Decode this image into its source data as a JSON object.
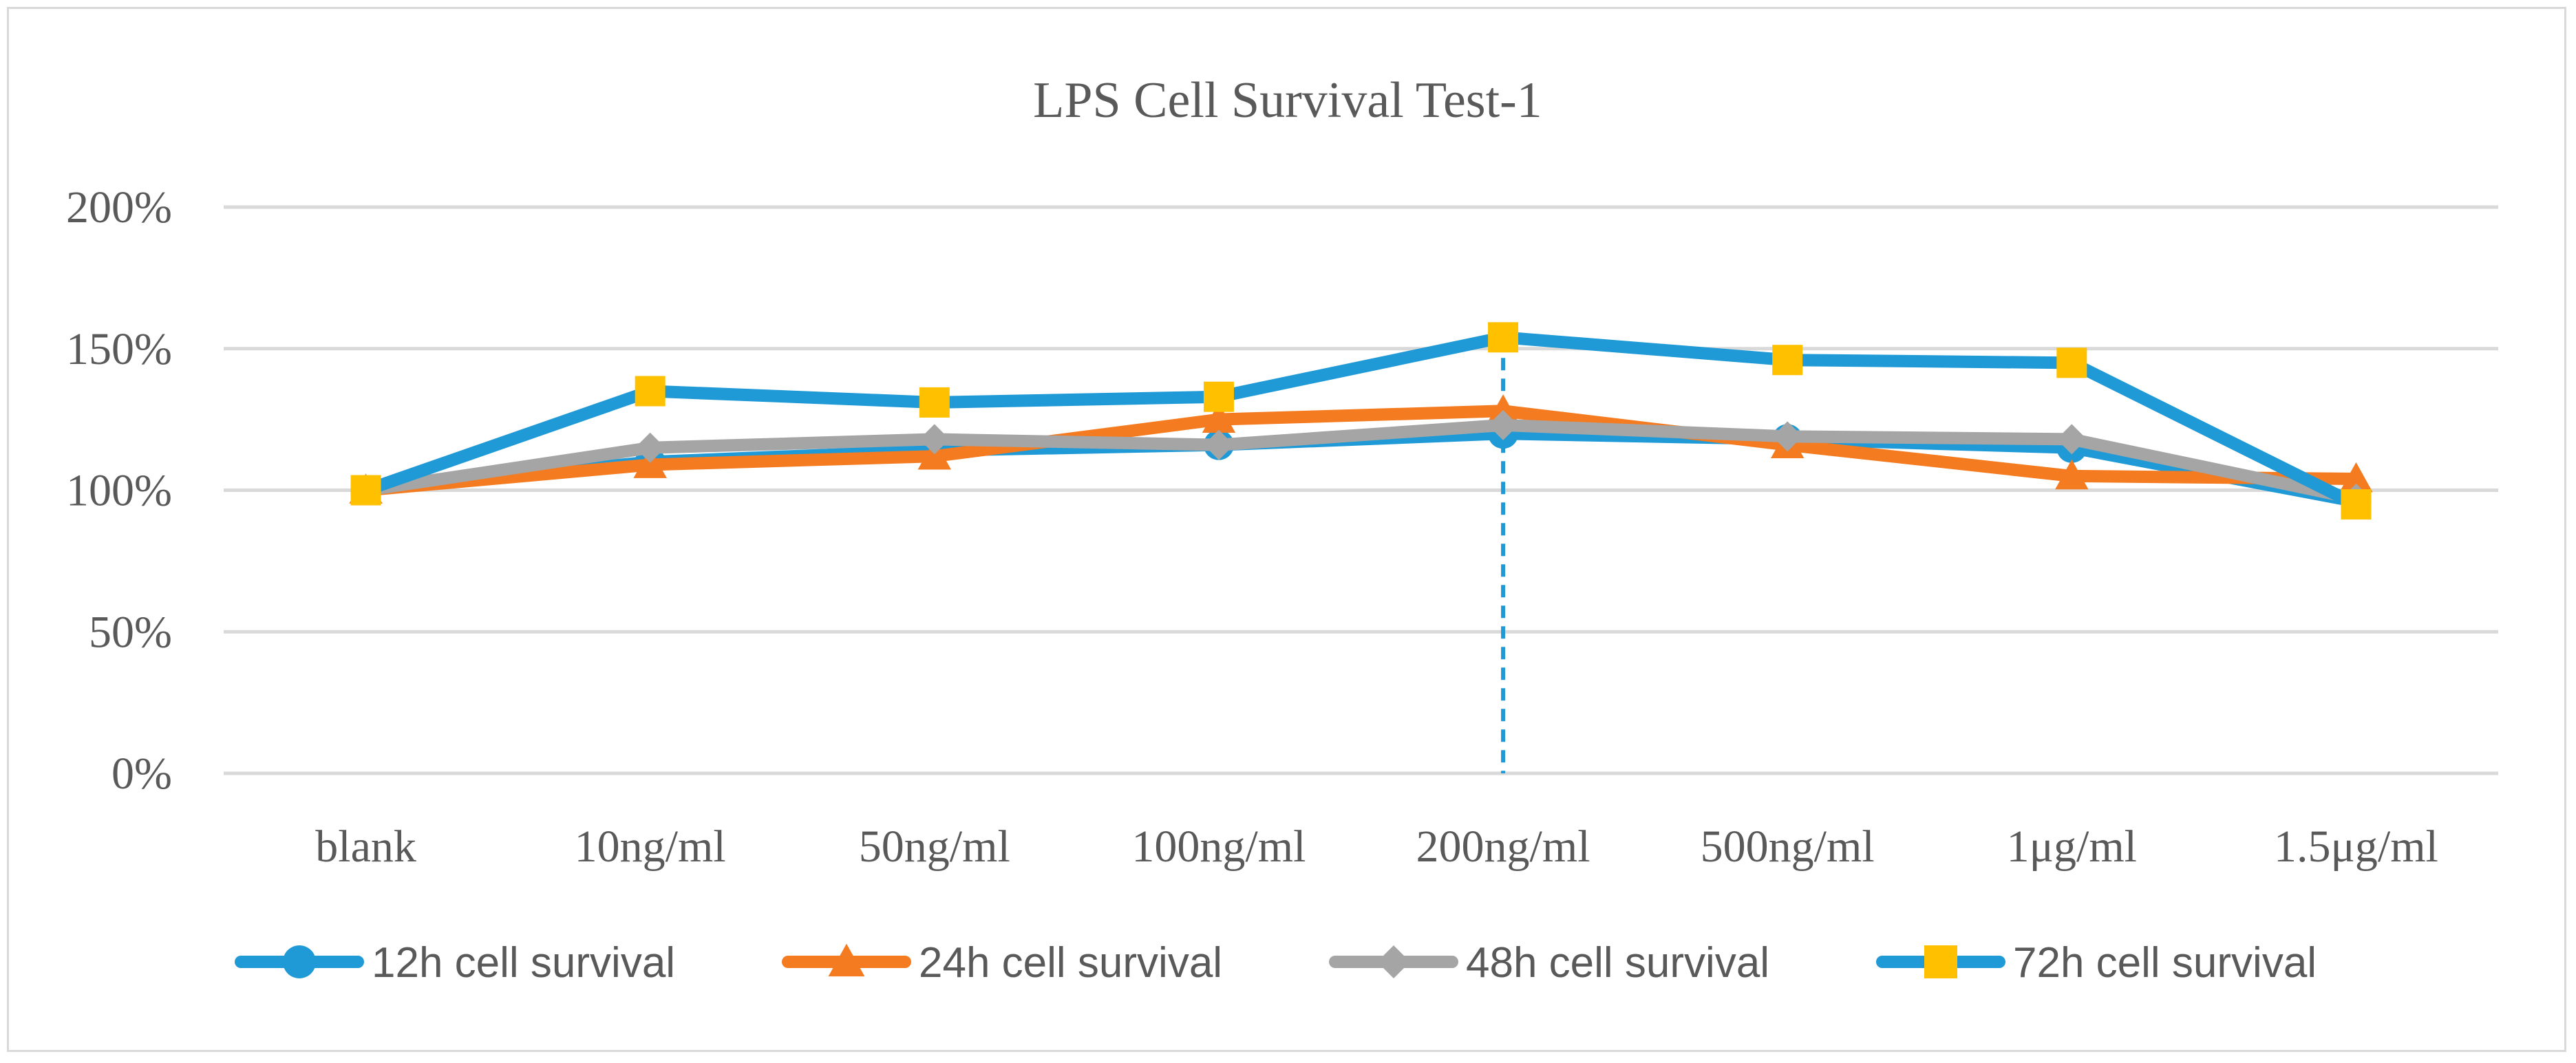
{
  "chart_data": {
    "type": "line",
    "title": "LPS Cell Survival Test-1",
    "xlabel": "",
    "ylabel": "",
    "categories": [
      "blank",
      "10ng/ml",
      "50ng/ml",
      "100ng/ml",
      "200ng/ml",
      "500ng/ml",
      "1μg/ml",
      "1.5μg/ml"
    ],
    "ylim": [
      0,
      2
    ],
    "yticks": [
      0,
      0.5,
      1,
      1.5,
      2
    ],
    "ytick_labels": [
      "0%",
      "50%",
      "100%",
      "150%",
      "200%"
    ],
    "grid": true,
    "legend_position": "bottom",
    "reference_line": {
      "category": "200ng/ml",
      "style": "dashed",
      "color": "#1f9ad6"
    },
    "series": [
      {
        "name": "12h cell survival",
        "color": "#1f9ad6",
        "marker": "circle",
        "values": [
          1.0,
          1.1,
          1.14,
          1.16,
          1.2,
          1.18,
          1.15,
          0.96
        ]
      },
      {
        "name": "24h cell survival",
        "color": "#f47b20",
        "marker": "triangle",
        "values": [
          1.0,
          1.09,
          1.12,
          1.25,
          1.28,
          1.16,
          1.05,
          1.04
        ]
      },
      {
        "name": "48h cell survival",
        "color": "#a5a5a5",
        "marker": "diamond",
        "values": [
          1.0,
          1.15,
          1.18,
          1.16,
          1.23,
          1.19,
          1.18,
          0.97
        ]
      },
      {
        "name": "72h cell survival",
        "color": "#1f9ad6",
        "marker": "square",
        "marker_color": "#ffc000",
        "values": [
          1.0,
          1.35,
          1.31,
          1.33,
          1.54,
          1.46,
          1.45,
          0.95
        ]
      }
    ]
  }
}
